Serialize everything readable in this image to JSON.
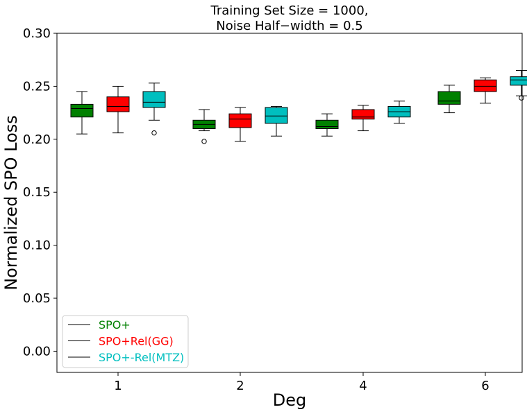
{
  "chart_data": {
    "type": "box",
    "title_lines": [
      "Training Set Size = 1000,",
      "Noise Half−width = 0.5"
    ],
    "xlabel": "Deg",
    "ylabel": "Normalized SPO Loss",
    "categories": [
      "1",
      "2",
      "4",
      "6"
    ],
    "ylim": [
      -0.02,
      0.3
    ],
    "yticks": [
      "0.00",
      "0.05",
      "0.10",
      "0.15",
      "0.20",
      "0.25",
      "0.30"
    ],
    "ytick_values": [
      0.0,
      0.05,
      0.1,
      0.15,
      0.2,
      0.25,
      0.3
    ],
    "grid": false,
    "legend_position": "lower-left",
    "series": [
      {
        "name": "SPO+",
        "color": "#008000",
        "boxes": [
          {
            "whislo": 0.205,
            "q1": 0.221,
            "med": 0.229,
            "q3": 0.233,
            "whishi": 0.245,
            "fliers": []
          },
          {
            "whislo": 0.208,
            "q1": 0.21,
            "med": 0.214,
            "q3": 0.218,
            "whishi": 0.228,
            "fliers": [
              0.198
            ]
          },
          {
            "whislo": 0.203,
            "q1": 0.21,
            "med": 0.212,
            "q3": 0.218,
            "whishi": 0.224,
            "fliers": []
          },
          {
            "whislo": 0.225,
            "q1": 0.233,
            "med": 0.236,
            "q3": 0.245,
            "whishi": 0.251,
            "fliers": []
          }
        ]
      },
      {
        "name": "SPO+Rel(GG)",
        "color": "#ff0000",
        "boxes": [
          {
            "whislo": 0.206,
            "q1": 0.226,
            "med": 0.231,
            "q3": 0.24,
            "whishi": 0.25,
            "fliers": []
          },
          {
            "whislo": 0.198,
            "q1": 0.211,
            "med": 0.219,
            "q3": 0.224,
            "whishi": 0.23,
            "fliers": []
          },
          {
            "whislo": 0.208,
            "q1": 0.219,
            "med": 0.221,
            "q3": 0.228,
            "whishi": 0.232,
            "fliers": []
          },
          {
            "whislo": 0.234,
            "q1": 0.245,
            "med": 0.25,
            "q3": 0.256,
            "whishi": 0.258,
            "fliers": []
          }
        ]
      },
      {
        "name": "SPO+-Rel(MTZ)",
        "color": "#00bfbf",
        "boxes": [
          {
            "whislo": 0.218,
            "q1": 0.23,
            "med": 0.235,
            "q3": 0.245,
            "whishi": 0.253,
            "fliers": [
              0.206
            ]
          },
          {
            "whislo": 0.203,
            "q1": 0.215,
            "med": 0.222,
            "q3": 0.23,
            "whishi": 0.231,
            "fliers": []
          },
          {
            "whislo": 0.215,
            "q1": 0.221,
            "med": 0.226,
            "q3": 0.231,
            "whishi": 0.236,
            "fliers": []
          },
          {
            "whislo": 0.241,
            "q1": 0.251,
            "med": 0.256,
            "q3": 0.259,
            "whishi": 0.265,
            "fliers": [
              0.239
            ]
          }
        ]
      }
    ]
  }
}
